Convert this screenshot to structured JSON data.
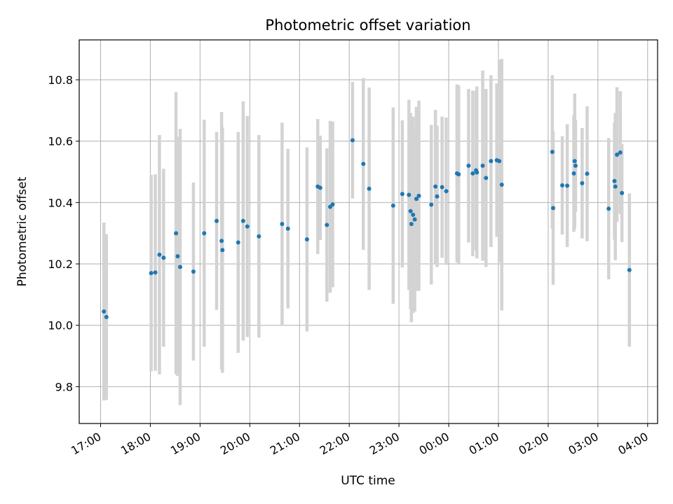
{
  "chart_data": {
    "type": "scatter",
    "title": "Photometric offset variation",
    "xlabel": "UTC time",
    "ylabel": "Photometric offset",
    "ylim": [
      9.68,
      10.93
    ],
    "grid": true,
    "colors": {
      "point": "#1f77b4",
      "errorbar": "#d3d3d3",
      "grid": "#b0b0b0"
    },
    "x_ticks": [
      "17:00",
      "18:00",
      "19:00",
      "20:00",
      "21:00",
      "22:00",
      "23:00",
      "00:00",
      "01:00",
      "02:00",
      "03:00",
      "04:00"
    ],
    "y_ticks": [
      "9.8",
      "10.0",
      "10.2",
      "10.4",
      "10.6",
      "10.8"
    ],
    "x_tick_hours": [
      17,
      18,
      19,
      20,
      21,
      22,
      23,
      24,
      25,
      26,
      27,
      28
    ],
    "y_tick_values": [
      9.8,
      10.0,
      10.2,
      10.4,
      10.6,
      10.8
    ],
    "xlim_hours": [
      16.57,
      28.2
    ],
    "series": [
      {
        "x": [
          "17:04",
          "17:07",
          "18:01",
          "18:06",
          "18:11",
          "18:16",
          "18:31",
          "18:33",
          "18:36",
          "18:52",
          "19:05",
          "19:20",
          "19:26",
          "19:27",
          "19:46",
          "19:52",
          "19:57",
          "20:11",
          "20:39",
          "20:46",
          "21:09",
          "21:22",
          "21:25",
          "21:33",
          "21:37",
          "21:40",
          "22:04",
          "22:17",
          "22:24",
          "22:53",
          "23:04",
          "23:12",
          "23:14",
          "23:15",
          "23:17",
          "23:19",
          "23:21",
          "23:24",
          "23:39",
          "23:44",
          "23:46",
          "23:52",
          "23:57",
          "00:10",
          "00:12",
          "00:24",
          "00:29",
          "00:33",
          "00:34",
          "00:41",
          "00:45",
          "00:51",
          "00:58",
          "01:01",
          "01:04",
          "02:05",
          "02:06",
          "02:17",
          "02:23",
          "02:31",
          "02:32",
          "02:33",
          "02:41",
          "02:47",
          "03:13",
          "03:20",
          "03:21",
          "03:23",
          "03:27",
          "03:29",
          "03:38"
        ],
        "y": [
          10.045,
          10.027,
          10.17,
          10.172,
          10.23,
          10.22,
          10.3,
          10.225,
          10.19,
          10.175,
          10.3,
          10.34,
          10.275,
          10.245,
          10.27,
          10.34,
          10.322,
          10.29,
          10.33,
          10.315,
          10.28,
          10.452,
          10.448,
          10.327,
          10.386,
          10.394,
          10.603,
          10.526,
          10.445,
          10.39,
          10.428,
          10.425,
          10.372,
          10.33,
          10.36,
          10.345,
          10.412,
          10.422,
          10.393,
          10.452,
          10.42,
          10.45,
          10.437,
          10.495,
          10.492,
          10.52,
          10.495,
          10.505,
          10.498,
          10.52,
          10.48,
          10.535,
          10.538,
          10.535,
          10.458,
          10.565,
          10.382,
          10.456,
          10.455,
          10.495,
          10.535,
          10.52,
          10.463,
          10.494,
          10.38,
          10.47,
          10.452,
          10.556,
          10.563,
          10.431,
          10.18
        ],
        "err": [
          0.29,
          0.27,
          0.32,
          0.32,
          0.39,
          0.29,
          0.46,
          0.39,
          0.45,
          0.29,
          0.37,
          0.29,
          0.42,
          0.4,
          0.36,
          0.39,
          0.36,
          0.33,
          0.33,
          0.26,
          0.3,
          0.22,
          0.17,
          0.25,
          0.28,
          0.27,
          0.19,
          0.28,
          0.33,
          0.32,
          0.24,
          0.31,
          0.32,
          0.32,
          0.32,
          0.3,
          0.3,
          0.31,
          0.26,
          0.25,
          0.23,
          0.23,
          0.24,
          0.29,
          0.29,
          0.25,
          0.27,
          0.26,
          0.28,
          0.31,
          0.29,
          0.28,
          0.25,
          0.33,
          0.41,
          0.25,
          0.25,
          0.16,
          0.2,
          0.19,
          0.22,
          0.15,
          0.18,
          0.22,
          0.23,
          0.19,
          0.24,
          0.22,
          0.2,
          0.16,
          0.25
        ]
      }
    ]
  }
}
